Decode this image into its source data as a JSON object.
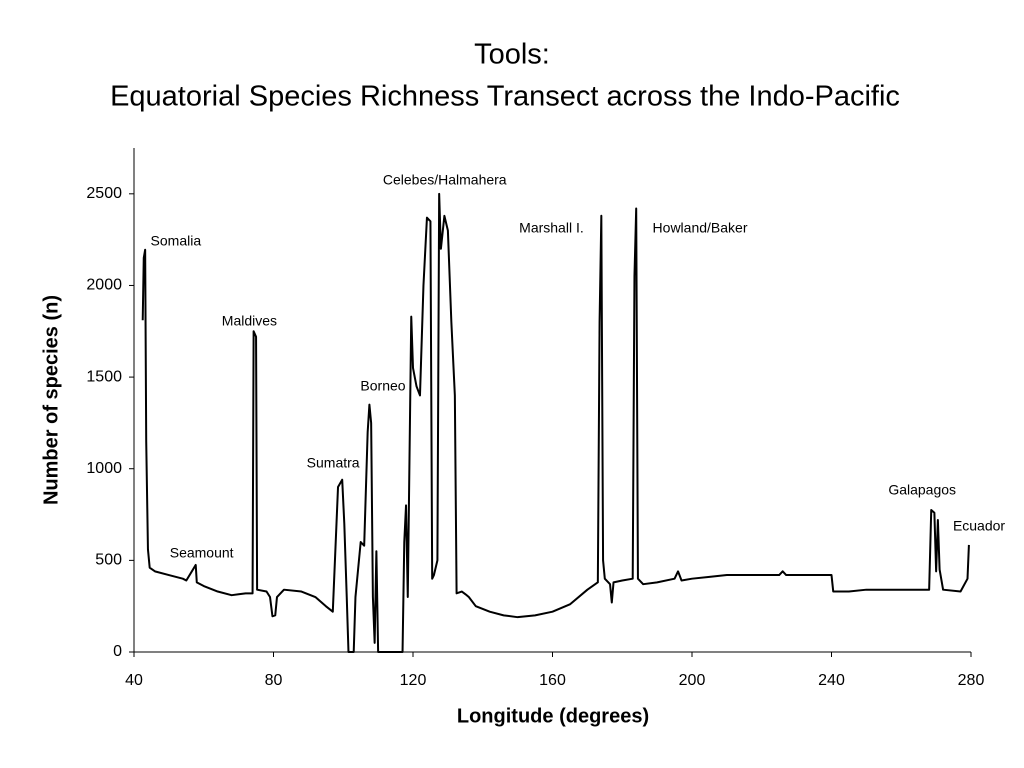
{
  "chart_data": {
    "type": "line",
    "title": [
      "Tools:",
      "Equatorial Species Richness Transect across the Indo-Pacific"
    ],
    "x_label": "Longitude (degrees)",
    "y_label": "Number of species (n)",
    "color": "#000000",
    "x": [
      42.5,
      42.8,
      43.2,
      43.5,
      44,
      44.5,
      46,
      50,
      54,
      55,
      57.7,
      58,
      60,
      64,
      68,
      70,
      72,
      74,
      74.3,
      75,
      75.3,
      78,
      79,
      79.7,
      80.5,
      81,
      83,
      88,
      92,
      95,
      97,
      98.5,
      99.7,
      100.3,
      101,
      101.5,
      103,
      103.5,
      104,
      105,
      106,
      107,
      107.5,
      108,
      108.5,
      109,
      109.5,
      110,
      117,
      117.5,
      118,
      118.5,
      119.5,
      120,
      121,
      122,
      123,
      124,
      125,
      125.5,
      126,
      127,
      127.5,
      128,
      129,
      130,
      131,
      132,
      132.5,
      134,
      135.4,
      136,
      138,
      142,
      146,
      150,
      155,
      160,
      165,
      170,
      173,
      173.5,
      174,
      174.5,
      175,
      176.5,
      177,
      177.5,
      180,
      183,
      183.5,
      184,
      184.5,
      186,
      190,
      195,
      196,
      197,
      200,
      205,
      210,
      215,
      225,
      226,
      227,
      240,
      240.5,
      245,
      250,
      260,
      268,
      268.6,
      269.5,
      270,
      270.5,
      271,
      272,
      277,
      279,
      279.4
    ],
    "values": [
      1810,
      2150,
      2195,
      1150,
      560,
      460,
      440,
      420,
      400,
      390,
      475,
      380,
      360,
      330,
      310,
      315,
      320,
      320,
      1750,
      1720,
      340,
      330,
      300,
      195,
      200,
      300,
      340,
      330,
      300,
      250,
      220,
      900,
      940,
      700,
      300,
      0,
      0,
      300,
      400,
      600,
      580,
      1200,
      1350,
      1250,
      300,
      50,
      550,
      0,
      0,
      600,
      800,
      300,
      1830,
      1550,
      1450,
      1400,
      2000,
      2370,
      2350,
      400,
      420,
      500,
      2500,
      2200,
      2380,
      2300,
      1800,
      1400,
      320,
      330,
      310,
      300,
      250,
      220,
      200,
      190,
      200,
      220,
      260,
      340,
      380,
      1800,
      2380,
      500,
      400,
      370,
      270,
      380,
      390,
      400,
      2050,
      2420,
      400,
      370,
      380,
      400,
      440,
      390,
      400,
      410,
      420,
      420,
      420,
      440,
      420,
      420,
      330,
      330,
      340,
      340,
      340,
      775,
      760,
      440,
      720,
      450,
      340,
      330,
      400,
      584
    ],
    "xlim": [
      40,
      280
    ],
    "xticks": [
      40,
      80,
      120,
      160,
      200,
      240,
      280
    ],
    "ylim": [
      0,
      2750
    ],
    "yticks": [
      0,
      500,
      1000,
      1500,
      2000,
      2500
    ],
    "grid": false,
    "annotations": [
      {
        "text": "Somalia",
        "x": 52,
        "y": 2238
      },
      {
        "text": "Seamount",
        "x": 59.4,
        "y": 535
      },
      {
        "text": "Maldives",
        "x": 73.1,
        "y": 1801
      },
      {
        "text": "Sumatra",
        "x": 97.1,
        "y": 1026
      },
      {
        "text": "Borneo",
        "x": 111.4,
        "y": 1446
      },
      {
        "text": "Celebes/Halmahera",
        "x": 129.1,
        "y": 2571
      },
      {
        "text": "Marshall I.",
        "x": 159.7,
        "y": 2309
      },
      {
        "text": "Howland/Baker",
        "x": 202.3,
        "y": 2309
      },
      {
        "text": "Galapagos",
        "x": 266,
        "y": 879
      },
      {
        "text": "Ecuador",
        "x": 282.3,
        "y": 682
      }
    ]
  }
}
